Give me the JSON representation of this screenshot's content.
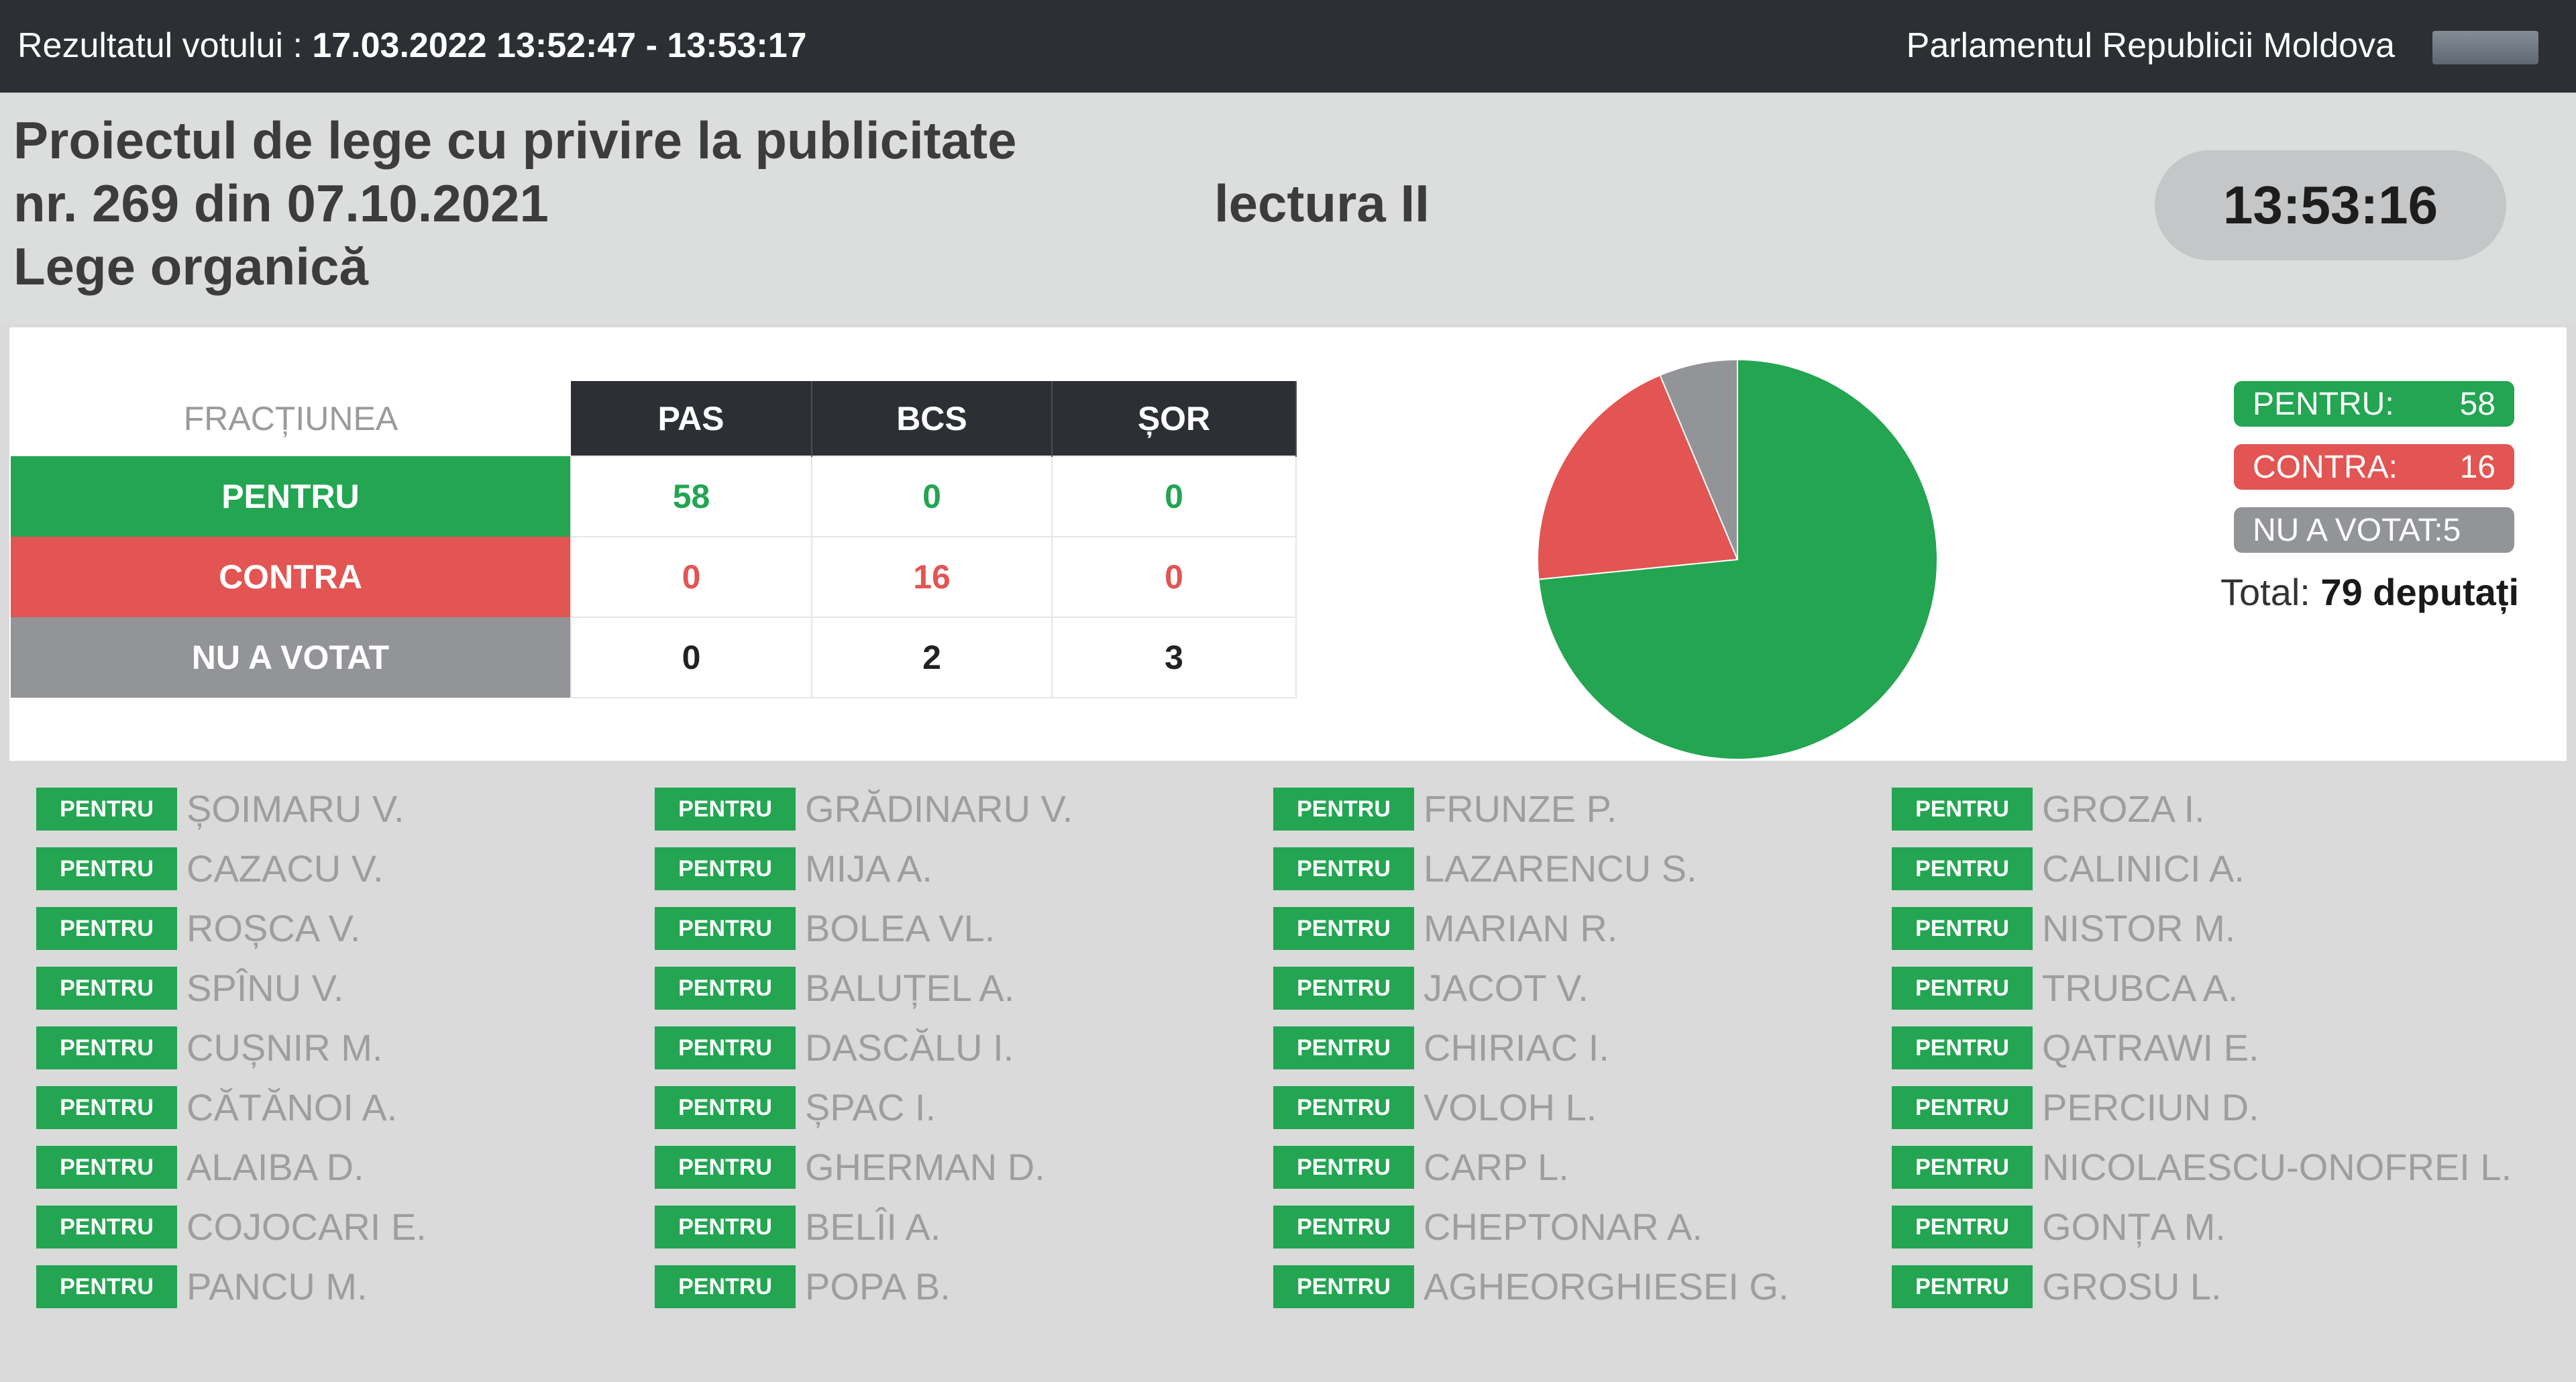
{
  "topbar": {
    "vote_label": "Rezultatul votului : ",
    "vote_time": "17.03.2022 13:52:47 - 13:53:17",
    "institution": "Parlamentul Republicii Moldova"
  },
  "header": {
    "title_line1": "Proiectul de lege cu privire la publicitate",
    "title_line2": "nr. 269 din 07.10.2021",
    "title_line3": "Lege organică",
    "reading": "lectura II",
    "clock": "13:53:16"
  },
  "table": {
    "corner": "FRACȚIUNEA",
    "columns": [
      "PAS",
      "BCS",
      "ȘOR"
    ],
    "rows": [
      {
        "label": "PENTRU",
        "values": [
          "58",
          "0",
          "0"
        ]
      },
      {
        "label": "CONTRA",
        "values": [
          "0",
          "16",
          "0"
        ]
      },
      {
        "label": "NU A VOTAT",
        "values": [
          "0",
          "2",
          "3"
        ]
      }
    ]
  },
  "chart_data": {
    "type": "pie",
    "title": "",
    "slices": [
      {
        "label": "PENTRU",
        "value": 58,
        "color": "#23a552"
      },
      {
        "label": "CONTRA",
        "value": 16,
        "color": "#e25553"
      },
      {
        "label": "NU A VOTAT",
        "value": 5,
        "color": "#929497"
      }
    ]
  },
  "legend": {
    "pentru_label": "PENTRU:",
    "pentru_value": "58",
    "contra_label": "CONTRA:",
    "contra_value": "16",
    "nu_label": "NU A VOTAT:5",
    "total_label": "Total:",
    "total_value": "79 deputați"
  },
  "vote_badge": "PENTRU",
  "deputies": {
    "col1": [
      "ȘOIMARU V.",
      "CAZACU V.",
      "ROȘCA V.",
      "SPÎNU V.",
      "CUȘNIR M.",
      "CĂTĂNOI A.",
      "ALAIBA D.",
      "COJOCARI E.",
      "PANCU M."
    ],
    "col2": [
      "GRĂDINARU V.",
      "MIJA A.",
      "BOLEA VL.",
      "BALUȚEL A.",
      "DASCĂLU I.",
      "ȘPAC I.",
      "GHERMAN D.",
      "BELÎI A.",
      "POPA B."
    ],
    "col3": [
      "FRUNZE P.",
      "LAZARENCU S.",
      "MARIAN R.",
      "JACOT V.",
      "CHIRIAC I.",
      "VOLOH L.",
      "CARP L.",
      "CHEPTONAR A.",
      "AGHEORGHIESEI G."
    ],
    "col4": [
      "GROZA I.",
      "CALINICI A.",
      "NISTOR M.",
      "TRUBCA A.",
      "QATRAWI E.",
      "PERCIUN D.",
      "NICOLAESCU-ONOFREI L.",
      "GONȚA M.",
      "GROSU L."
    ]
  },
  "colors": {
    "green": "#23a552",
    "red": "#e25553",
    "gray": "#929497",
    "dark": "#2c2f33"
  }
}
